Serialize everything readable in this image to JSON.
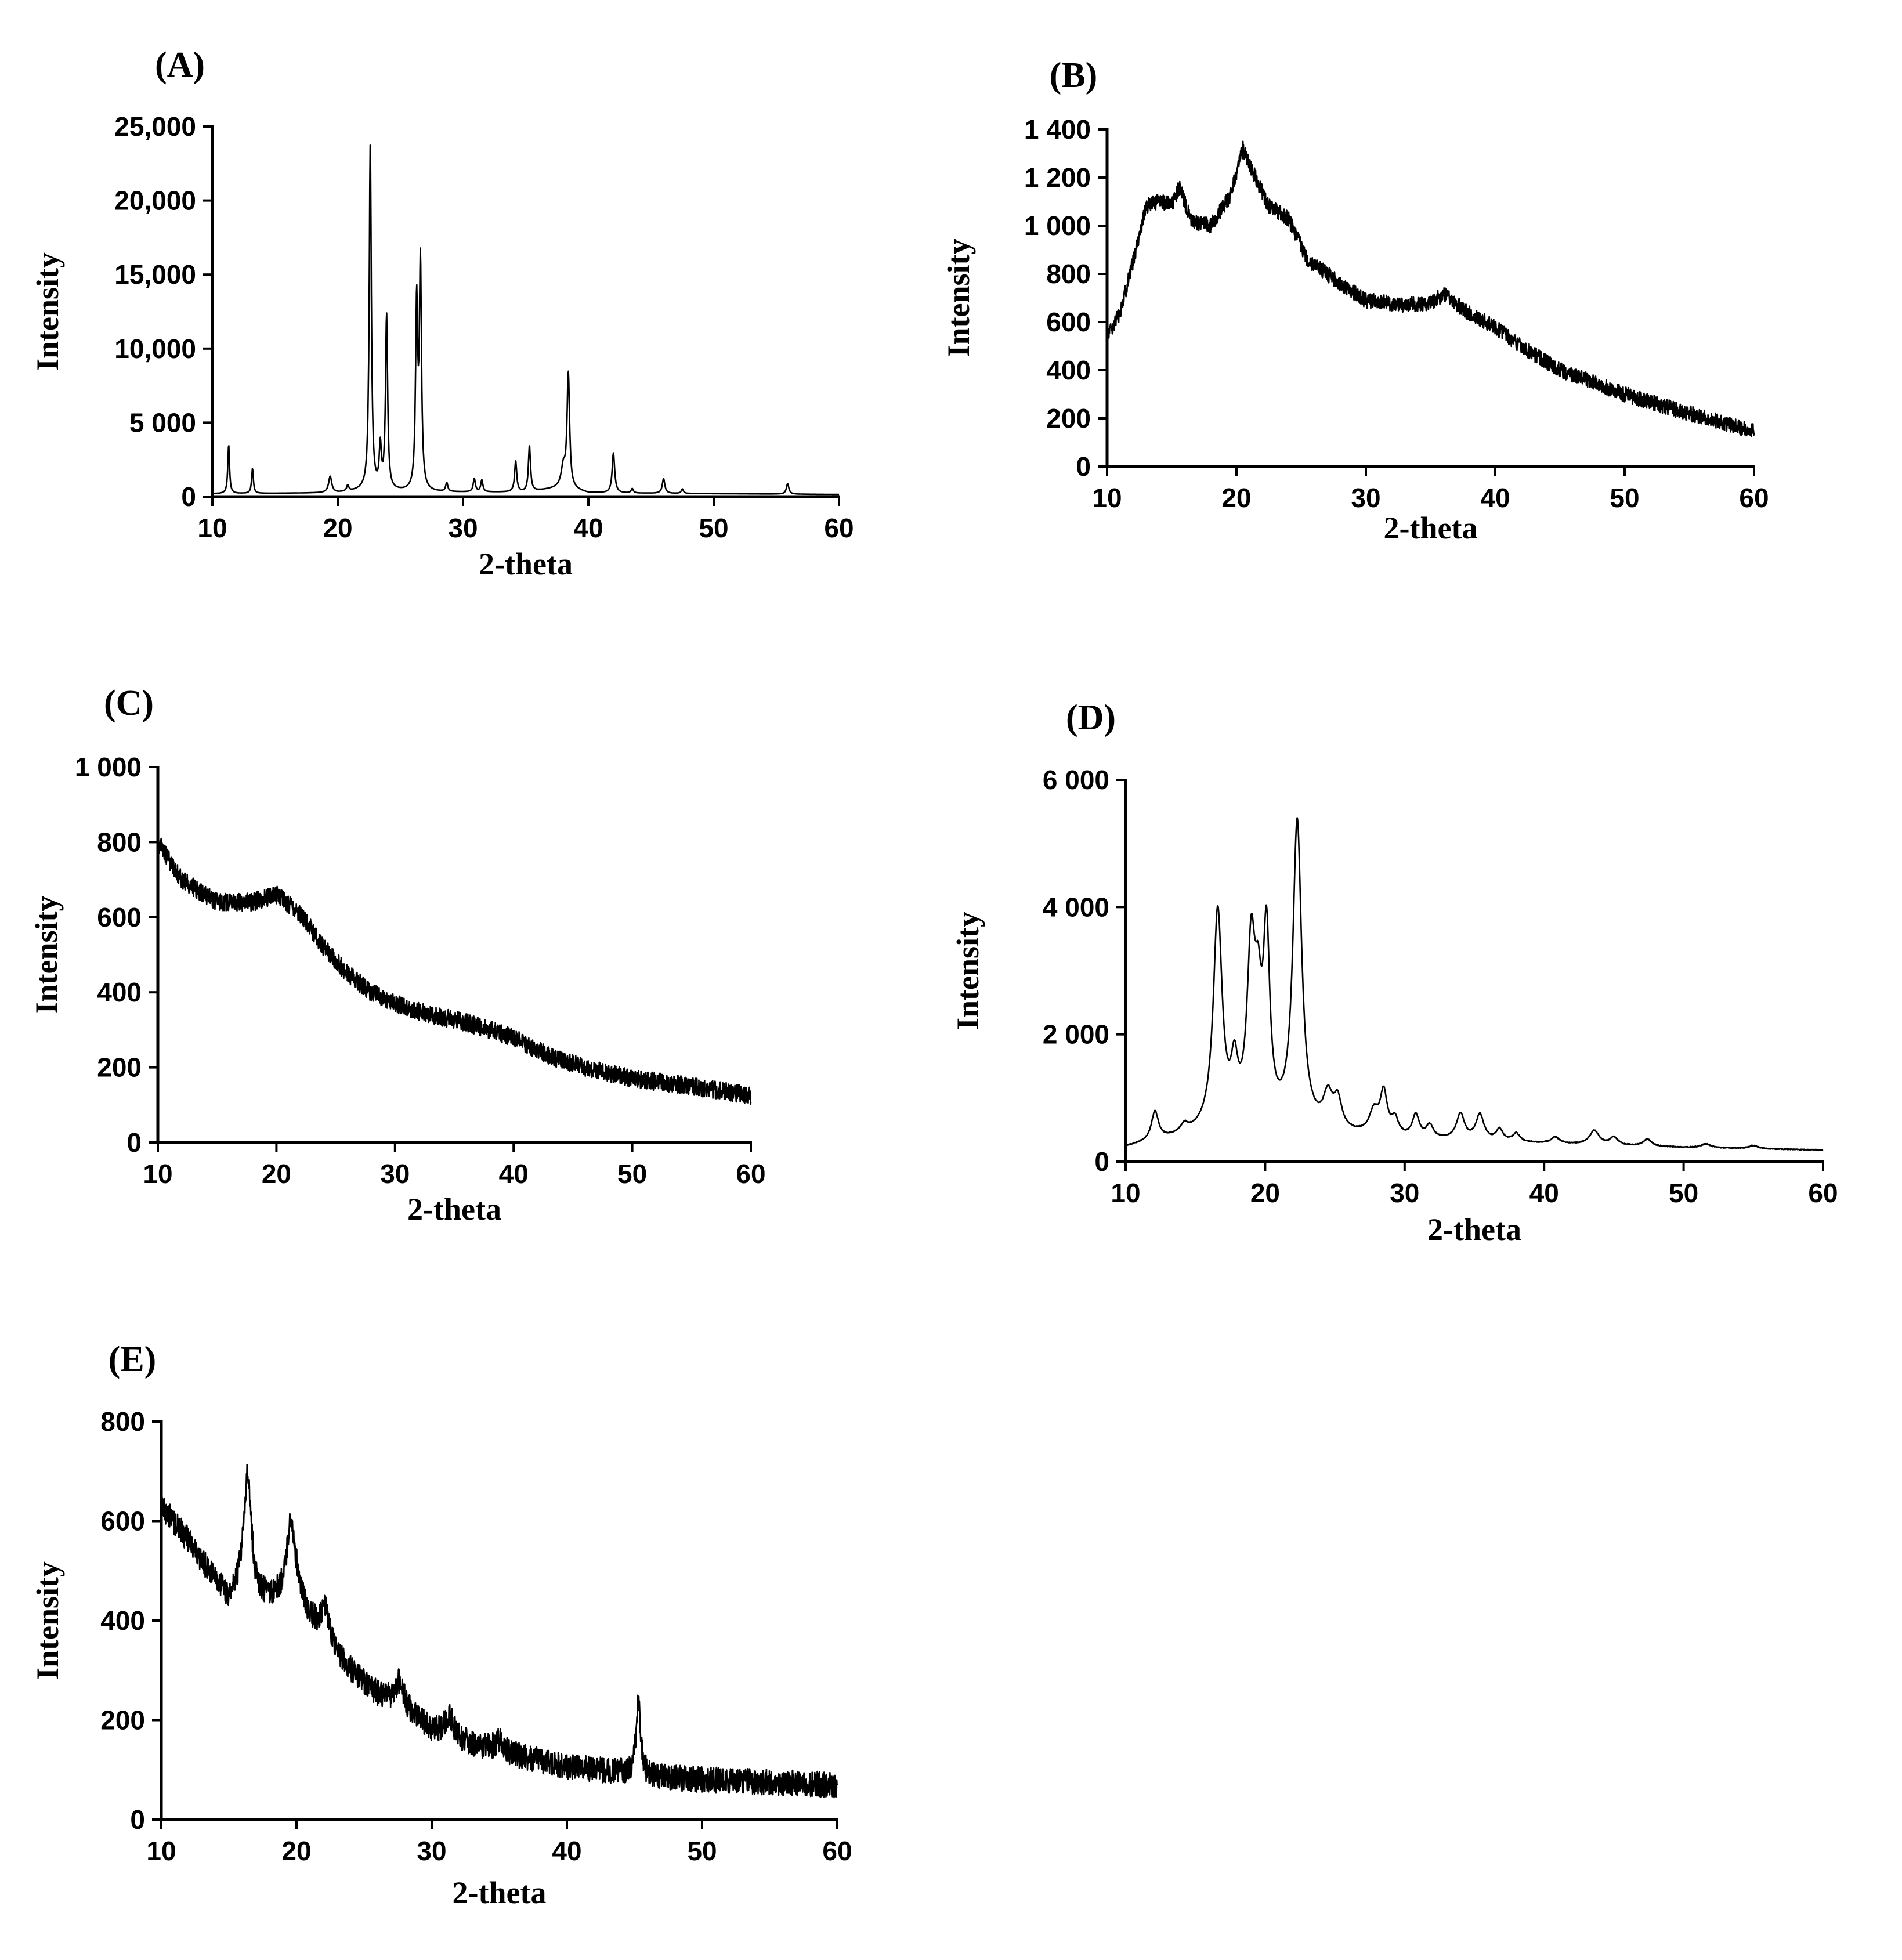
{
  "chart_data": [
    {
      "panel": "(A)",
      "type": "line",
      "title": "",
      "xlabel": "2-theta",
      "ylabel": "Intensity",
      "xlim": [
        10,
        60
      ],
      "ylim": [
        0,
        25000
      ],
      "xticks": [
        10,
        20,
        30,
        40,
        50,
        60
      ],
      "xtick_labels": [
        "10",
        "20",
        "30",
        "40",
        "50",
        "60"
      ],
      "yticks": [
        0,
        5000,
        10000,
        15000,
        20000,
        25000
      ],
      "ytick_labels": [
        "0",
        "5 000",
        "10,000",
        "15,000",
        "20,000",
        "25,000"
      ],
      "baseline": [
        [
          10,
          200
        ],
        [
          20,
          250
        ],
        [
          22,
          400
        ],
        [
          27,
          300
        ],
        [
          35,
          300
        ],
        [
          38,
          600
        ],
        [
          40,
          250
        ],
        [
          60,
          150
        ]
      ],
      "peaks": [
        [
          11.3,
          3300,
          0.08
        ],
        [
          13.2,
          1700,
          0.08
        ],
        [
          19.4,
          1100,
          0.15
        ],
        [
          20.8,
          400,
          0.1
        ],
        [
          22.6,
          23300,
          0.1
        ],
        [
          23.4,
          2800,
          0.1
        ],
        [
          23.9,
          11800,
          0.1
        ],
        [
          26.3,
          12500,
          0.1
        ],
        [
          26.6,
          15200,
          0.1
        ],
        [
          28.7,
          600,
          0.1
        ],
        [
          30.9,
          900,
          0.1
        ],
        [
          31.5,
          800,
          0.1
        ],
        [
          34.2,
          2100,
          0.1
        ],
        [
          35.3,
          3100,
          0.1
        ],
        [
          38.0,
          1300,
          0.2
        ],
        [
          38.4,
          7700,
          0.12
        ],
        [
          42.0,
          2700,
          0.12
        ],
        [
          43.5,
          300,
          0.1
        ],
        [
          46.0,
          1000,
          0.12
        ],
        [
          47.5,
          300,
          0.1
        ],
        [
          55.9,
          700,
          0.12
        ]
      ],
      "noise": 0,
      "samples": 1600
    },
    {
      "panel": "(B)",
      "type": "line",
      "title": "",
      "xlabel": "2-theta",
      "ylabel": "Intensity",
      "xlim": [
        10,
        60
      ],
      "ylim": [
        0,
        1400
      ],
      "xticks": [
        10,
        20,
        30,
        40,
        50,
        60
      ],
      "xtick_labels": [
        "10",
        "20",
        "30",
        "40",
        "50",
        "60"
      ],
      "yticks": [
        0,
        200,
        400,
        600,
        800,
        1000,
        1200,
        1400
      ],
      "ytick_labels": [
        "0",
        "200",
        "400",
        "600",
        "800",
        "1 000",
        "1 200",
        "1 400"
      ],
      "baseline": [
        [
          10,
          540
        ],
        [
          11,
          640
        ],
        [
          12,
          850
        ],
        [
          13,
          1080
        ],
        [
          14,
          1100
        ],
        [
          15,
          1090
        ],
        [
          15.6,
          1160
        ],
        [
          16.5,
          1020
        ],
        [
          18,
          1000
        ],
        [
          19.5,
          1120
        ],
        [
          20.5,
          1320
        ],
        [
          21.3,
          1220
        ],
        [
          22.5,
          1080
        ],
        [
          24,
          1030
        ],
        [
          25.5,
          860
        ],
        [
          28,
          760
        ],
        [
          30,
          690
        ],
        [
          33,
          670
        ],
        [
          35,
          680
        ],
        [
          36.2,
          720
        ],
        [
          37.5,
          650
        ],
        [
          40,
          580
        ],
        [
          42,
          500
        ],
        [
          45,
          400
        ],
        [
          50,
          300
        ],
        [
          55,
          220
        ],
        [
          60,
          145
        ]
      ],
      "peaks": [],
      "noise": 32,
      "samples": 2500
    },
    {
      "panel": "(C)",
      "type": "line",
      "title": "",
      "xlabel": "2-theta",
      "ylabel": "Intensity",
      "xlim": [
        10,
        60
      ],
      "ylim": [
        0,
        1000
      ],
      "xticks": [
        10,
        20,
        30,
        40,
        50,
        60
      ],
      "xtick_labels": [
        "10",
        "20",
        "30",
        "40",
        "50",
        "60"
      ],
      "yticks": [
        0,
        200,
        400,
        600,
        800,
        1000
      ],
      "ytick_labels": [
        "0",
        "200",
        "400",
        "600",
        "800",
        "1 000"
      ],
      "baseline": [
        [
          10,
          800
        ],
        [
          12,
          700
        ],
        [
          15,
          640
        ],
        [
          18,
          640
        ],
        [
          20,
          660
        ],
        [
          22,
          610
        ],
        [
          24,
          520
        ],
        [
          26,
          450
        ],
        [
          28,
          400
        ],
        [
          30,
          370
        ],
        [
          33,
          340
        ],
        [
          36,
          320
        ],
        [
          40,
          280
        ],
        [
          43,
          230
        ],
        [
          46,
          200
        ],
        [
          50,
          170
        ],
        [
          55,
          150
        ],
        [
          60,
          125
        ]
      ],
      "peaks": [],
      "noise": 24,
      "samples": 2500
    },
    {
      "panel": "(D)",
      "type": "line",
      "title": "",
      "xlabel": "2-theta",
      "ylabel": "Intensity",
      "xlim": [
        10,
        60
      ],
      "ylim": [
        0,
        6000
      ],
      "xticks": [
        10,
        20,
        30,
        40,
        50,
        60
      ],
      "xtick_labels": [
        "10",
        "20",
        "30",
        "40",
        "50",
        "60"
      ],
      "yticks": [
        0,
        2000,
        4000,
        6000
      ],
      "ytick_labels": [
        "0",
        "2 000",
        "4 000",
        "6 000"
      ],
      "baseline": [
        [
          10,
          220
        ],
        [
          12,
          300
        ],
        [
          14,
          380
        ],
        [
          16,
          450
        ],
        [
          20,
          500
        ],
        [
          23,
          450
        ],
        [
          25,
          420
        ],
        [
          30,
          350
        ],
        [
          40,
          280
        ],
        [
          50,
          220
        ],
        [
          60,
          180
        ]
      ],
      "peaks": [
        [
          12.1,
          450,
          0.3
        ],
        [
          14.2,
          120,
          0.3
        ],
        [
          16.6,
          3400,
          0.38
        ],
        [
          17.8,
          800,
          0.3
        ],
        [
          19.0,
          2650,
          0.35
        ],
        [
          19.5,
          1400,
          0.3
        ],
        [
          20.1,
          2800,
          0.28
        ],
        [
          22.3,
          4800,
          0.38
        ],
        [
          24.5,
          500,
          0.4
        ],
        [
          25.2,
          450,
          0.35
        ],
        [
          27.8,
          350,
          0.4
        ],
        [
          28.5,
          650,
          0.3
        ],
        [
          29.3,
          250,
          0.3
        ],
        [
          30.8,
          350,
          0.3
        ],
        [
          31.8,
          200,
          0.3
        ],
        [
          34.0,
          400,
          0.35
        ],
        [
          35.4,
          400,
          0.35
        ],
        [
          36.8,
          180,
          0.3
        ],
        [
          38.0,
          130,
          0.3
        ],
        [
          40.8,
          100,
          0.35
        ],
        [
          43.6,
          220,
          0.4
        ],
        [
          45.0,
          120,
          0.35
        ],
        [
          47.4,
          110,
          0.35
        ],
        [
          51.6,
          60,
          0.4
        ],
        [
          55.0,
          50,
          0.4
        ]
      ],
      "noise": 7,
      "samples": 2000
    },
    {
      "panel": "(E)",
      "type": "line",
      "title": "",
      "xlabel": "2-theta",
      "ylabel": "Intensity",
      "xlim": [
        10,
        60
      ],
      "ylim": [
        0,
        800
      ],
      "xticks": [
        10,
        20,
        30,
        40,
        50,
        60
      ],
      "xtick_labels": [
        "10",
        "20",
        "30",
        "40",
        "50",
        "60"
      ],
      "yticks": [
        0,
        200,
        400,
        600,
        800
      ],
      "ytick_labels": [
        "0",
        "200",
        "400",
        "600",
        "800"
      ],
      "baseline": [
        [
          10,
          630
        ],
        [
          12,
          560
        ],
        [
          14,
          480
        ],
        [
          15,
          440
        ],
        [
          16,
          480
        ],
        [
          17,
          450
        ],
        [
          18,
          440
        ],
        [
          20,
          440
        ],
        [
          22,
          360
        ],
        [
          24,
          300
        ],
        [
          26,
          250
        ],
        [
          28,
          220
        ],
        [
          30,
          180
        ],
        [
          33,
          150
        ],
        [
          36,
          130
        ],
        [
          40,
          105
        ],
        [
          44,
          95
        ],
        [
          46,
          85
        ],
        [
          50,
          80
        ],
        [
          55,
          75
        ],
        [
          60,
          70
        ]
      ],
      "peaks": [
        [
          16.4,
          230,
          0.3
        ],
        [
          19.6,
          160,
          0.4
        ],
        [
          22.1,
          70,
          0.35
        ],
        [
          27.6,
          50,
          0.4
        ],
        [
          31.3,
          40,
          0.4
        ],
        [
          35.0,
          20,
          0.4
        ],
        [
          45.3,
          150,
          0.2
        ]
      ],
      "noise": 26,
      "samples": 2500
    }
  ]
}
